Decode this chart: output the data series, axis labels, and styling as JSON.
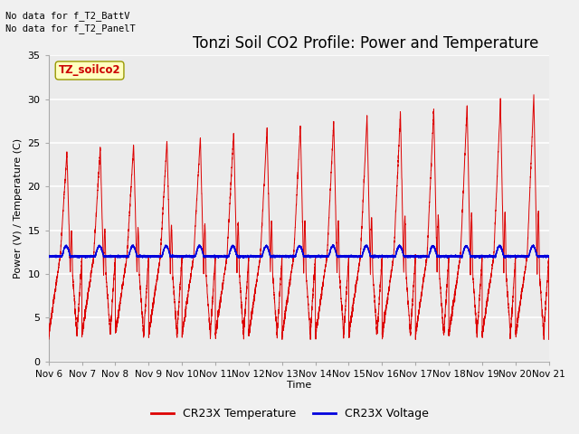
{
  "title": "Tonzi Soil CO2 Profile: Power and Temperature",
  "ylabel": "Power (V) / Temperature (C)",
  "xlabel": "Time",
  "no_data_text1": "No data for f_T2_BattV",
  "no_data_text2": "No data for f_T2_PanelT",
  "site_label": "TZ_soilco2",
  "ylim": [
    0,
    35
  ],
  "yticks": [
    0,
    5,
    10,
    15,
    20,
    25,
    30,
    35
  ],
  "xtick_labels": [
    "Nov 6",
    "Nov 7",
    "Nov 8",
    "Nov 9",
    "Nov 10",
    "Nov 11",
    "Nov 12",
    "Nov 13",
    "Nov 14",
    "Nov 15",
    "Nov 16",
    "Nov 17",
    "Nov 18",
    "Nov 19",
    "Nov 20",
    "Nov 21"
  ],
  "legend_temp_label": "CR23X Temperature",
  "legend_volt_label": "CR23X Voltage",
  "temp_color": "#dd0000",
  "volt_color": "#0000dd",
  "plot_bg_color": "#ebebeb",
  "grid_color": "#ffffff",
  "title_fontsize": 12,
  "axis_fontsize": 8,
  "tick_fontsize": 8,
  "legend_fontsize": 9
}
